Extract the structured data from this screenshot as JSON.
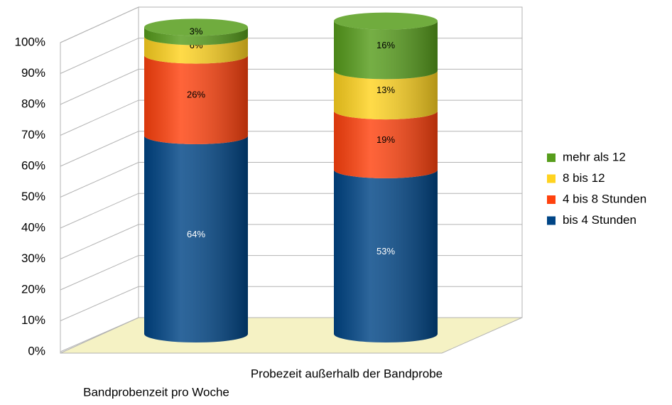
{
  "chart_data": {
    "type": "bar3d_stacked_cylinder",
    "categories": [
      "Bandprobenzeit pro Woche",
      "Probezeit außerhalb der Bandprobe"
    ],
    "series": [
      {
        "name": "bis 4 Stunden",
        "color": "#004586",
        "values": [
          64,
          53
        ],
        "value_labels": [
          "64%",
          "53%"
        ]
      },
      {
        "name": "4 bis 8 Stunden",
        "color": "#ff420e",
        "values": [
          26,
          19
        ],
        "value_labels": [
          "26%",
          "19%"
        ]
      },
      {
        "name": "8 bis 12",
        "color": "#ffd320",
        "values": [
          6,
          13
        ],
        "value_labels": [
          "6%",
          "13%"
        ]
      },
      {
        "name": "mehr als 12",
        "color": "#579d1c",
        "values": [
          3,
          16
        ],
        "value_labels": [
          "3%",
          "16%"
        ]
      }
    ],
    "ylim": [
      0,
      100
    ],
    "yticks": [
      {
        "value": 0,
        "label": "0%"
      },
      {
        "value": 10,
        "label": "10%"
      },
      {
        "value": 20,
        "label": "20%"
      },
      {
        "value": 30,
        "label": "30%"
      },
      {
        "value": 40,
        "label": "40%"
      },
      {
        "value": 50,
        "label": "50%"
      },
      {
        "value": 60,
        "label": "60%"
      },
      {
        "value": 70,
        "label": "70%"
      },
      {
        "value": 80,
        "label": "80%"
      },
      {
        "value": 90,
        "label": "90%"
      },
      {
        "value": 100,
        "label": "100%"
      }
    ],
    "grid": true,
    "legend": "right"
  }
}
